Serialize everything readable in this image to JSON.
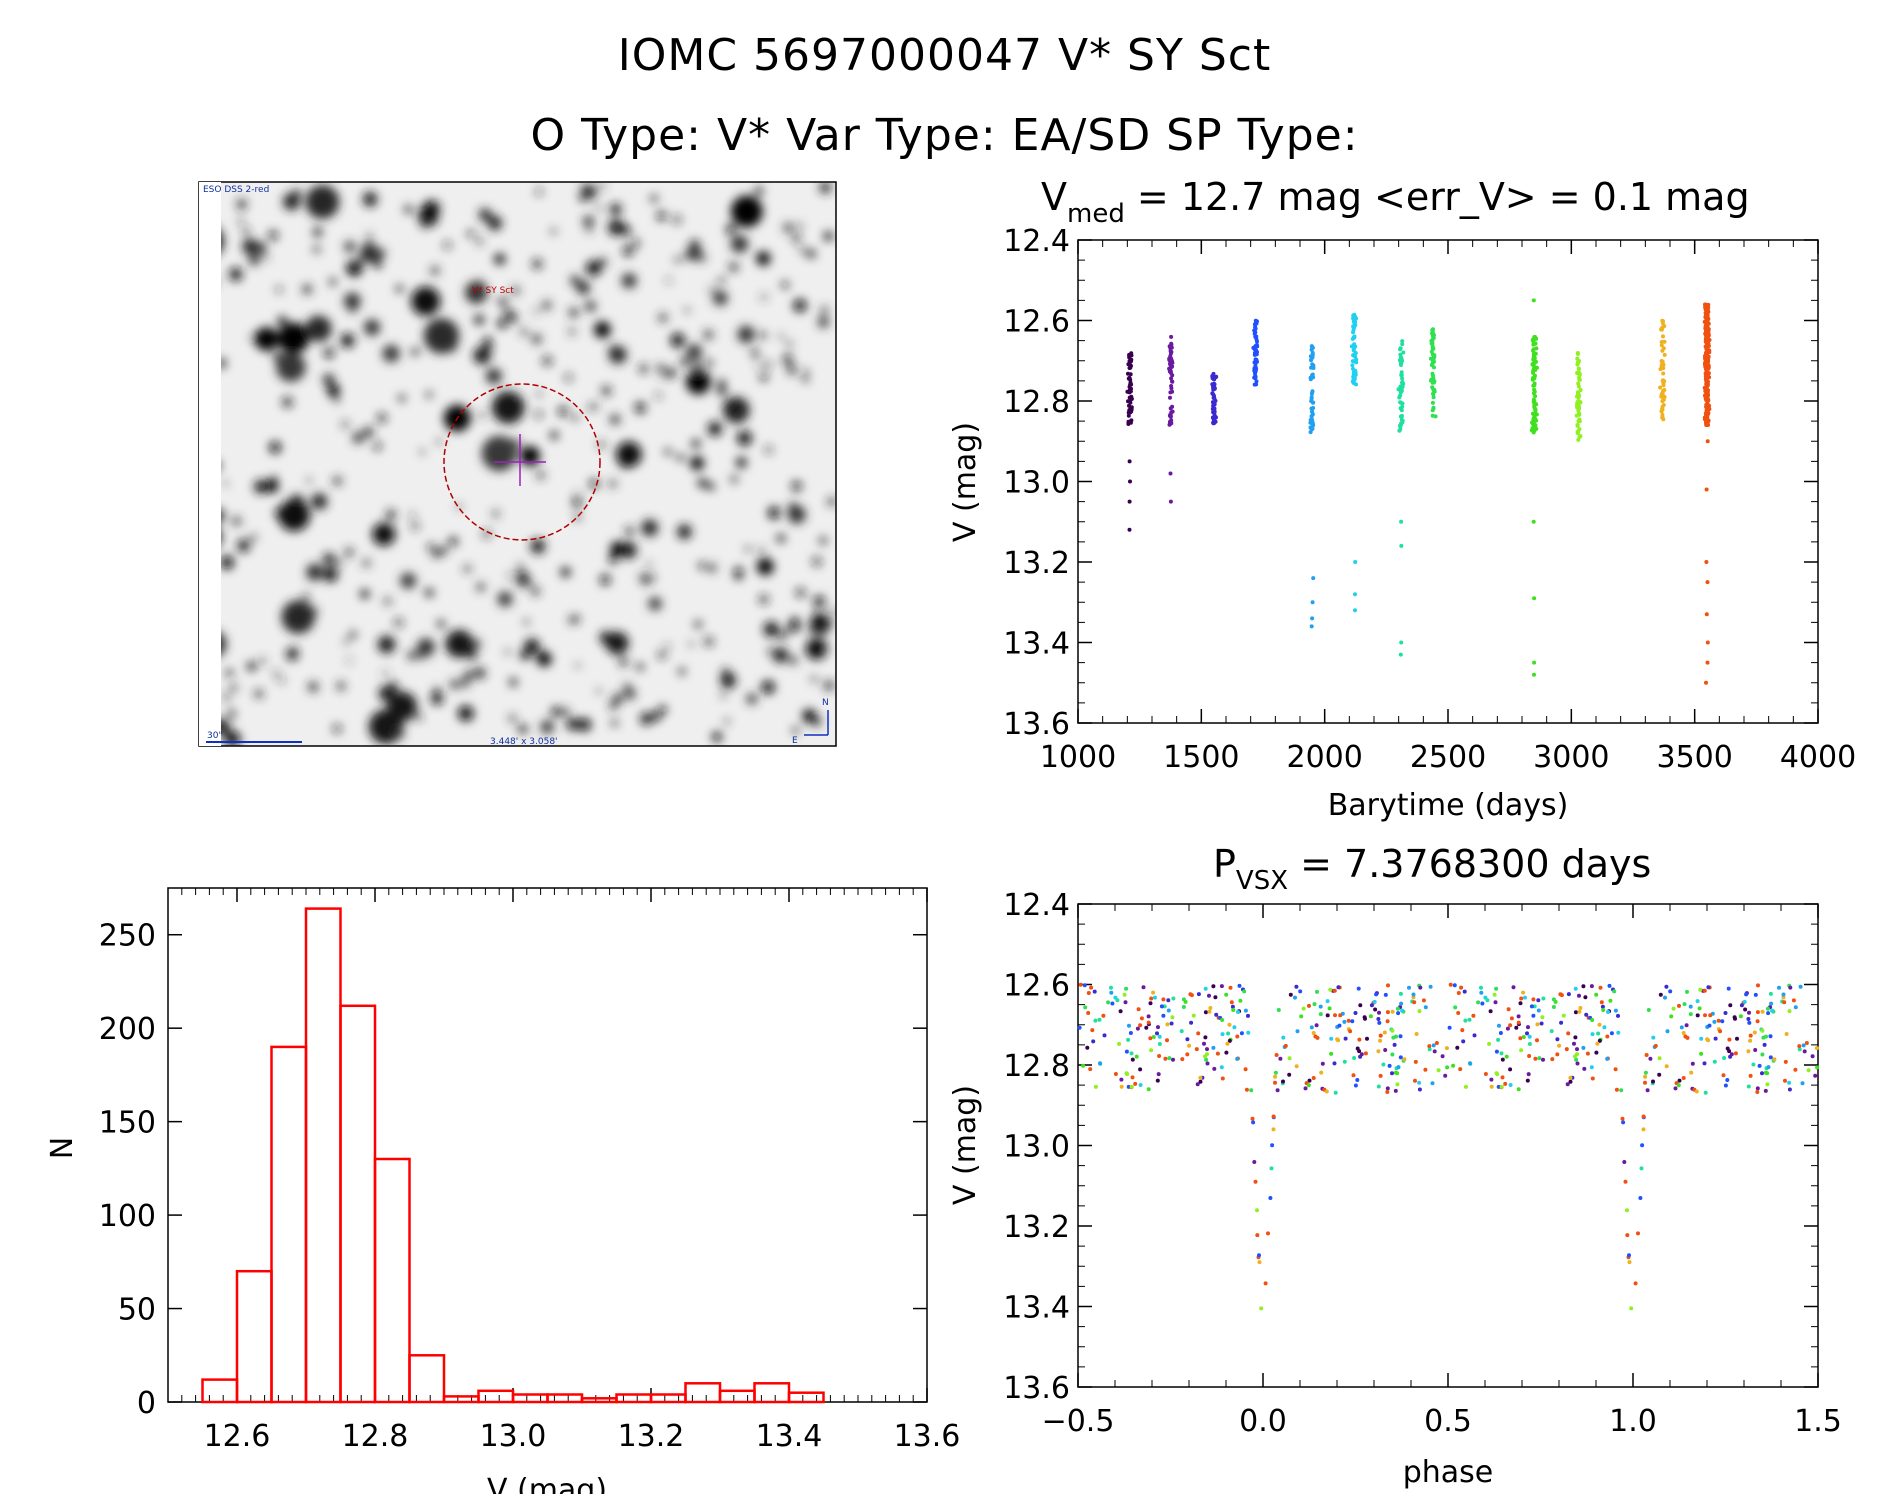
{
  "header": {
    "line1": "IOMC 5697000047    V* SY Sct",
    "line2": "O Type: V*  Var Type: EA/SD  SP Type:"
  },
  "finder": {
    "survey": "ESO DSS 2-red",
    "target_label": "V* SY Sct",
    "scale_label": "30\"",
    "field_size": "3.448' x 3.058'",
    "north": "N",
    "east": "E"
  },
  "chart_data": [
    {
      "id": "lightcurve",
      "type": "scatter",
      "title_prefix": "V",
      "title_sub": "med",
      "title_rest": " = 12.7 mag <err_V> = 0.1 mag",
      "xlabel": "Barytime (days)",
      "ylabel": "V (mag)",
      "xlim": [
        1000,
        4000
      ],
      "ylim": [
        13.6,
        12.4
      ],
      "xticks": [
        "1000",
        "1500",
        "2000",
        "2500",
        "3000",
        "3500",
        "4000"
      ],
      "yticks": [
        "12.4",
        "12.6",
        "12.8",
        "13.0",
        "13.2",
        "13.4",
        "13.6"
      ],
      "clusters": [
        {
          "x": 1210,
          "color": "#3a0050",
          "ymin": 12.68,
          "ymax": 12.86,
          "faint": [
            12.95,
            13.0,
            13.05,
            13.12
          ]
        },
        {
          "x": 1375,
          "color": "#6a1aa0",
          "ymin": 12.64,
          "ymax": 12.86,
          "faint": [
            12.98,
            13.05
          ]
        },
        {
          "x": 1550,
          "color": "#3a2ad0",
          "ymin": 12.72,
          "ymax": 12.86,
          "faint": []
        },
        {
          "x": 1720,
          "color": "#2050ff",
          "ymin": 12.6,
          "ymax": 12.76,
          "faint": []
        },
        {
          "x": 1950,
          "color": "#20a0f0",
          "ymin": 12.66,
          "ymax": 12.88,
          "faint": [
            13.24,
            13.3,
            13.34,
            13.36
          ]
        },
        {
          "x": 2120,
          "color": "#20d0f0",
          "ymin": 12.58,
          "ymax": 12.76,
          "faint": [
            13.2,
            13.28,
            13.32
          ]
        },
        {
          "x": 2310,
          "color": "#20e0a0",
          "ymin": 12.64,
          "ymax": 12.88,
          "faint": [
            13.1,
            13.16,
            13.4,
            13.43
          ]
        },
        {
          "x": 2440,
          "color": "#30e050",
          "ymin": 12.62,
          "ymax": 12.84,
          "faint": []
        },
        {
          "x": 2850,
          "color": "#40e020",
          "ymin": 12.64,
          "ymax": 12.88,
          "faint": [
            12.55,
            13.1,
            13.29,
            13.45,
            13.48
          ]
        },
        {
          "x": 3030,
          "color": "#90f020",
          "ymin": 12.68,
          "ymax": 12.9,
          "faint": []
        },
        {
          "x": 3370,
          "color": "#f0b020",
          "ymin": 12.6,
          "ymax": 12.86,
          "faint": []
        },
        {
          "x": 3550,
          "color": "#f05010",
          "ymin": 12.56,
          "ymax": 12.86,
          "faint": [
            12.9,
            13.02,
            13.2,
            13.25,
            13.33,
            13.4,
            13.45,
            13.5
          ]
        }
      ]
    },
    {
      "id": "histogram",
      "type": "bar",
      "xlabel": "V (mag)",
      "ylabel": "N",
      "xlim": [
        12.5,
        13.6
      ],
      "ylim": [
        0,
        275
      ],
      "xticks": [
        "12.6",
        "12.8",
        "13.0",
        "13.2",
        "13.4",
        "13.6"
      ],
      "yticks": [
        "0",
        "50",
        "100",
        "150",
        "200",
        "250"
      ],
      "bin_width": 0.05,
      "bin_starts": [
        12.55,
        12.6,
        12.65,
        12.7,
        12.75,
        12.8,
        12.85,
        12.9,
        12.95,
        13.0,
        13.05,
        13.1,
        13.15,
        13.2,
        13.25,
        13.3,
        13.35,
        13.4,
        13.45
      ],
      "values": [
        12,
        70,
        190,
        264,
        212,
        130,
        25,
        3,
        6,
        4,
        4,
        2,
        4,
        4,
        10,
        6,
        10,
        5,
        0
      ],
      "color": "#ff0000"
    },
    {
      "id": "phased",
      "type": "scatter",
      "title_prefix": "P",
      "title_sub": "VSX",
      "title_rest": " = 7.3768300 days",
      "xlabel": "phase",
      "ylabel": "V (mag)",
      "xlim": [
        -0.5,
        1.5
      ],
      "ylim": [
        13.6,
        12.4
      ],
      "xticks": [
        "−0.5",
        "0.0",
        "0.5",
        "1.0",
        "1.5"
      ],
      "yticks": [
        "12.4",
        "12.6",
        "12.8",
        "13.0",
        "13.2",
        "13.4",
        "13.6"
      ],
      "period_days": 7.37683,
      "colors": [
        "#3a0050",
        "#6a1aa0",
        "#3a2ad0",
        "#2050ff",
        "#20a0f0",
        "#20d0f0",
        "#20e0a0",
        "#30e050",
        "#40e020",
        "#90f020",
        "#f0b020",
        "#f05010",
        "#f05010",
        "#f05010"
      ]
    }
  ]
}
